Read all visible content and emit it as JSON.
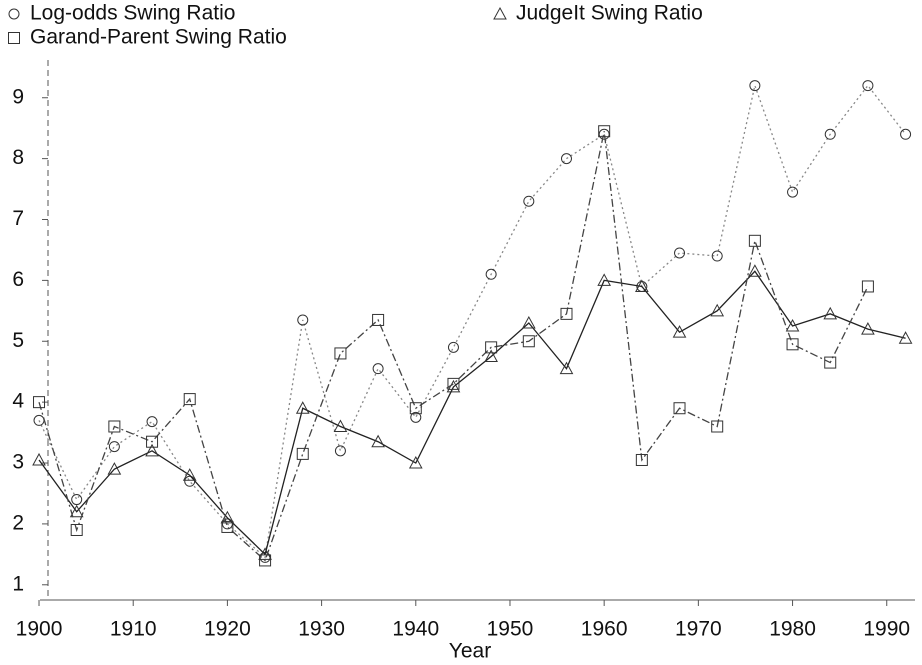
{
  "chart_data": {
    "type": "line",
    "x_label": "Year",
    "x": [
      1900,
      1904,
      1908,
      1912,
      1916,
      1920,
      1924,
      1928,
      1932,
      1936,
      1940,
      1944,
      1948,
      1952,
      1956,
      1960,
      1964,
      1968,
      1972,
      1976,
      1980,
      1984,
      1988,
      1992
    ],
    "series": [
      {
        "name": "Log-odds Swing Ratio",
        "color": "#888888",
        "marker": "circle",
        "dash": "2,3",
        "values": [
          3.7,
          2.4,
          3.27,
          3.68,
          2.7,
          2.0,
          1.45,
          5.35,
          3.2,
          4.55,
          3.75,
          4.9,
          6.1,
          7.3,
          8.0,
          8.4,
          5.9,
          6.45,
          6.4,
          9.2,
          7.45,
          8.4,
          9.2,
          8.4
        ]
      },
      {
        "name": "JudgeIt Swing Ratio",
        "color": "#222222",
        "marker": "triangle",
        "dash": "none",
        "values": [
          3.05,
          2.2,
          2.9,
          3.2,
          2.8,
          2.1,
          1.5,
          3.9,
          3.6,
          3.35,
          3.0,
          4.25,
          4.75,
          5.3,
          4.55,
          6.0,
          5.9,
          5.15,
          5.5,
          6.15,
          5.25,
          5.45,
          5.2,
          5.05
        ]
      },
      {
        "name": "Garand-Parent Swing Ratio",
        "color": "#444444",
        "marker": "square",
        "dash": "8,3,2,3",
        "values": [
          4.0,
          1.9,
          3.6,
          3.35,
          4.05,
          1.95,
          1.4,
          3.15,
          4.8,
          5.35,
          3.9,
          4.3,
          4.9,
          5.0,
          5.45,
          8.45,
          3.05,
          3.9,
          3.6,
          6.65,
          4.95,
          4.65,
          5.9,
          null
        ]
      }
    ],
    "xlim": [
      1899,
      1993
    ],
    "xticks": [
      1900,
      1910,
      1920,
      1930,
      1940,
      1950,
      1960,
      1970,
      1980,
      1990
    ],
    "ylim": [
      0.75,
      9.62
    ],
    "yticks": [
      1,
      2,
      3,
      4,
      5,
      6,
      7,
      8,
      9
    ]
  }
}
